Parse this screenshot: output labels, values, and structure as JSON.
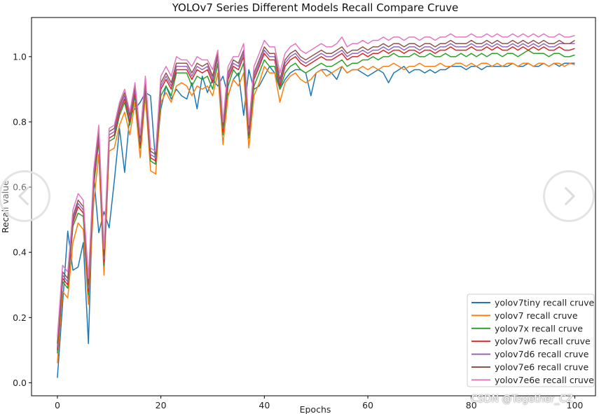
{
  "chart_data": {
    "type": "line",
    "title": "YOLOv7 Series Different Models Recall Compare Cruve",
    "xlabel": "Epochs",
    "ylabel": "Recall value",
    "xlim": [
      -5,
      104
    ],
    "ylim": [
      -0.04,
      1.12
    ],
    "xticks": [
      0,
      20,
      40,
      60,
      80,
      100
    ],
    "yticks": [
      0.0,
      0.2,
      0.4,
      0.6,
      0.8,
      1.0
    ],
    "grid": false,
    "legend_position": "bottom-right",
    "series": [
      {
        "name": "yolov7tiny recall cruve",
        "color": "#1f77b4",
        "values": [
          0.015,
          0.24,
          0.465,
          0.345,
          0.355,
          0.43,
          0.12,
          0.64,
          0.46,
          0.525,
          0.475,
          0.62,
          0.78,
          0.645,
          0.82,
          0.84,
          0.86,
          0.89,
          0.88,
          0.67,
          0.84,
          0.91,
          0.87,
          0.9,
          0.88,
          0.87,
          0.92,
          0.84,
          0.94,
          0.89,
          0.93,
          0.91,
          0.94,
          0.88,
          0.93,
          0.95,
          0.82,
          0.96,
          0.9,
          0.91,
          0.94,
          0.97,
          0.95,
          0.9,
          0.93,
          0.95,
          0.96,
          0.96,
          0.95,
          0.88,
          0.95,
          0.96,
          0.96,
          0.95,
          0.93,
          0.97,
          0.95,
          0.96,
          0.96,
          0.95,
          0.94,
          0.95,
          0.96,
          0.95,
          0.92,
          0.95,
          0.96,
          0.97,
          0.95,
          0.96,
          0.96,
          0.95,
          0.96,
          0.95,
          0.96,
          0.96,
          0.97,
          0.97,
          0.97,
          0.96,
          0.97,
          0.97,
          0.96,
          0.97,
          0.97,
          0.97,
          0.97,
          0.97,
          0.98,
          0.97,
          0.97,
          0.98,
          0.97,
          0.97,
          0.98,
          0.97,
          0.98,
          0.97,
          0.98,
          0.98,
          0.98
        ]
      },
      {
        "name": "yolov7 recall cruve",
        "color": "#ff7f0e",
        "values": [
          0.06,
          0.28,
          0.26,
          0.43,
          0.49,
          0.47,
          0.24,
          0.55,
          0.7,
          0.33,
          0.71,
          0.72,
          0.79,
          0.83,
          0.76,
          0.86,
          0.69,
          0.88,
          0.65,
          0.64,
          0.86,
          0.89,
          0.86,
          0.91,
          0.92,
          0.91,
          0.88,
          0.91,
          0.9,
          0.91,
          0.88,
          0.95,
          0.73,
          0.88,
          0.93,
          0.91,
          0.95,
          0.72,
          0.88,
          0.92,
          0.97,
          0.95,
          0.95,
          0.86,
          0.92,
          0.94,
          0.95,
          0.93,
          0.92,
          0.93,
          0.95,
          0.96,
          0.94,
          0.95,
          0.96,
          0.97,
          0.95,
          0.96,
          0.96,
          0.97,
          0.96,
          0.97,
          0.96,
          0.97,
          0.97,
          0.98,
          0.97,
          0.96,
          0.97,
          0.97,
          0.98,
          0.97,
          0.97,
          0.97,
          0.98,
          0.97,
          0.97,
          0.98,
          0.98,
          0.97,
          0.98,
          0.97,
          0.98,
          0.98,
          0.97,
          0.98,
          0.97,
          0.98,
          0.98,
          0.97,
          0.98,
          0.98,
          0.97,
          0.98,
          0.98,
          0.97,
          0.98,
          0.98,
          0.97,
          0.98,
          0.975
        ]
      },
      {
        "name": "yolov7x recall cruve",
        "color": "#2ca02c",
        "values": [
          0.09,
          0.31,
          0.29,
          0.48,
          0.52,
          0.51,
          0.27,
          0.6,
          0.74,
          0.36,
          0.74,
          0.75,
          0.82,
          0.86,
          0.79,
          0.88,
          0.72,
          0.9,
          0.68,
          0.67,
          0.88,
          0.91,
          0.88,
          0.95,
          0.95,
          0.95,
          0.91,
          0.94,
          0.93,
          0.94,
          0.9,
          0.98,
          0.76,
          0.91,
          0.96,
          0.94,
          0.98,
          0.75,
          0.91,
          0.95,
          0.99,
          0.97,
          0.97,
          0.9,
          0.95,
          0.97,
          0.98,
          0.96,
          0.95,
          0.96,
          0.97,
          0.98,
          0.97,
          0.97,
          0.98,
          0.99,
          0.97,
          0.98,
          0.98,
          0.99,
          0.99,
          1.0,
          0.99,
          1.0,
          1.0,
          1.01,
          1.0,
          1.0,
          1.0,
          1.01,
          1.0,
          1.0,
          1.01,
          1.0,
          1.0,
          1.01,
          1.0,
          1.0,
          1.01,
          1.0,
          1.01,
          1.0,
          1.01,
          1.0,
          1.01,
          1.01,
          1.0,
          1.01,
          1.01,
          1.0,
          1.01,
          1.02,
          1.01,
          1.01,
          1.01,
          1.0,
          1.01,
          1.01,
          1.0,
          1.0,
          1.005
        ]
      },
      {
        "name": "yolov7w6 recall cruve",
        "color": "#d62728",
        "values": [
          0.1,
          0.32,
          0.3,
          0.49,
          0.54,
          0.52,
          0.28,
          0.61,
          0.75,
          0.37,
          0.75,
          0.76,
          0.83,
          0.87,
          0.8,
          0.89,
          0.73,
          0.91,
          0.69,
          0.68,
          0.9,
          0.93,
          0.9,
          0.96,
          0.96,
          0.96,
          0.93,
          0.96,
          0.95,
          0.96,
          0.92,
          1.0,
          0.77,
          0.93,
          0.97,
          0.96,
          1.0,
          0.76,
          0.93,
          0.97,
          1.01,
          0.99,
          0.99,
          0.91,
          0.97,
          0.99,
          1.0,
          0.98,
          0.97,
          0.98,
          0.99,
          1.0,
          0.99,
          0.99,
          1.0,
          1.01,
          0.99,
          1.0,
          1.0,
          1.01,
          1.0,
          1.01,
          1.01,
          1.02,
          1.01,
          1.02,
          1.02,
          1.01,
          1.02,
          1.02,
          1.01,
          1.02,
          1.02,
          1.01,
          1.02,
          1.02,
          1.03,
          1.02,
          1.02,
          1.02,
          1.03,
          1.02,
          1.02,
          1.03,
          1.02,
          1.03,
          1.02,
          1.02,
          1.03,
          1.02,
          1.03,
          1.02,
          1.03,
          1.02,
          1.03,
          1.02,
          1.02,
          1.03,
          1.02,
          1.02,
          1.025
        ]
      },
      {
        "name": "yolov7d6 recall cruve",
        "color": "#9467bd",
        "values": [
          0.11,
          0.33,
          0.31,
          0.5,
          0.55,
          0.53,
          0.29,
          0.62,
          0.76,
          0.38,
          0.76,
          0.77,
          0.84,
          0.88,
          0.81,
          0.9,
          0.74,
          0.92,
          0.7,
          0.69,
          0.91,
          0.94,
          0.91,
          0.97,
          0.97,
          0.97,
          0.94,
          0.97,
          0.96,
          0.97,
          0.93,
          1.0,
          0.78,
          0.94,
          0.98,
          0.97,
          1.01,
          0.77,
          0.94,
          0.98,
          1.02,
          1.0,
          1.0,
          0.92,
          0.98,
          1.0,
          1.01,
          0.99,
          0.98,
          0.99,
          1.0,
          1.01,
          1.0,
          1.0,
          1.01,
          1.02,
          1.0,
          1.01,
          1.01,
          1.02,
          1.01,
          1.02,
          1.02,
          1.03,
          1.02,
          1.03,
          1.03,
          1.02,
          1.03,
          1.03,
          1.02,
          1.03,
          1.03,
          1.02,
          1.03,
          1.03,
          1.04,
          1.03,
          1.03,
          1.03,
          1.04,
          1.03,
          1.03,
          1.04,
          1.03,
          1.04,
          1.03,
          1.03,
          1.04,
          1.03,
          1.04,
          1.03,
          1.04,
          1.03,
          1.04,
          1.03,
          1.03,
          1.04,
          1.04,
          1.04,
          1.04
        ]
      },
      {
        "name": "yolov7e6 recall cruve",
        "color": "#8c564b",
        "values": [
          0.12,
          0.34,
          0.32,
          0.51,
          0.56,
          0.54,
          0.3,
          0.63,
          0.77,
          0.39,
          0.77,
          0.78,
          0.85,
          0.89,
          0.82,
          0.91,
          0.75,
          0.93,
          0.71,
          0.7,
          0.92,
          0.95,
          0.92,
          0.98,
          0.98,
          0.98,
          0.95,
          0.98,
          0.97,
          0.98,
          0.94,
          1.01,
          0.79,
          0.95,
          0.99,
          0.98,
          1.02,
          0.78,
          0.95,
          0.99,
          1.03,
          1.01,
          1.01,
          0.93,
          0.99,
          1.01,
          1.02,
          1.0,
          0.99,
          1.0,
          1.01,
          1.02,
          1.01,
          1.01,
          1.02,
          1.03,
          1.01,
          1.02,
          1.02,
          1.03,
          1.02,
          1.03,
          1.03,
          1.04,
          1.03,
          1.04,
          1.04,
          1.03,
          1.04,
          1.04,
          1.03,
          1.04,
          1.04,
          1.03,
          1.04,
          1.04,
          1.05,
          1.04,
          1.04,
          1.04,
          1.05,
          1.04,
          1.04,
          1.05,
          1.04,
          1.05,
          1.04,
          1.04,
          1.05,
          1.04,
          1.05,
          1.04,
          1.05,
          1.04,
          1.05,
          1.04,
          1.04,
          1.05,
          1.04,
          1.04,
          1.05
        ]
      },
      {
        "name": "yolov7e6e recall cruve",
        "color": "#e377c2",
        "values": [
          0.14,
          0.36,
          0.34,
          0.53,
          0.58,
          0.56,
          0.32,
          0.65,
          0.79,
          0.41,
          0.78,
          0.79,
          0.86,
          0.9,
          0.83,
          0.92,
          0.76,
          0.94,
          0.72,
          0.71,
          0.94,
          0.97,
          0.94,
          1.0,
          0.99,
          0.99,
          0.97,
          1.0,
          0.99,
          0.99,
          0.96,
          1.02,
          0.8,
          0.97,
          1.0,
          1.0,
          1.04,
          0.79,
          0.97,
          1.01,
          1.05,
          1.03,
          1.03,
          0.95,
          1.01,
          1.03,
          1.04,
          1.02,
          1.01,
          1.02,
          1.03,
          1.04,
          1.03,
          1.03,
          1.04,
          1.06,
          1.03,
          1.04,
          1.04,
          1.05,
          1.04,
          1.05,
          1.05,
          1.06,
          1.05,
          1.06,
          1.06,
          1.05,
          1.06,
          1.06,
          1.05,
          1.06,
          1.06,
          1.05,
          1.06,
          1.06,
          1.07,
          1.06,
          1.06,
          1.06,
          1.07,
          1.06,
          1.06,
          1.07,
          1.06,
          1.07,
          1.06,
          1.06,
          1.07,
          1.06,
          1.07,
          1.06,
          1.07,
          1.06,
          1.07,
          1.06,
          1.06,
          1.07,
          1.06,
          1.06,
          1.065
        ]
      }
    ]
  },
  "overlay": {
    "prev_icon": "chevron-left-icon",
    "next_icon": "chevron-right-icon",
    "watermark": "CSDN @Together_CZ"
  }
}
